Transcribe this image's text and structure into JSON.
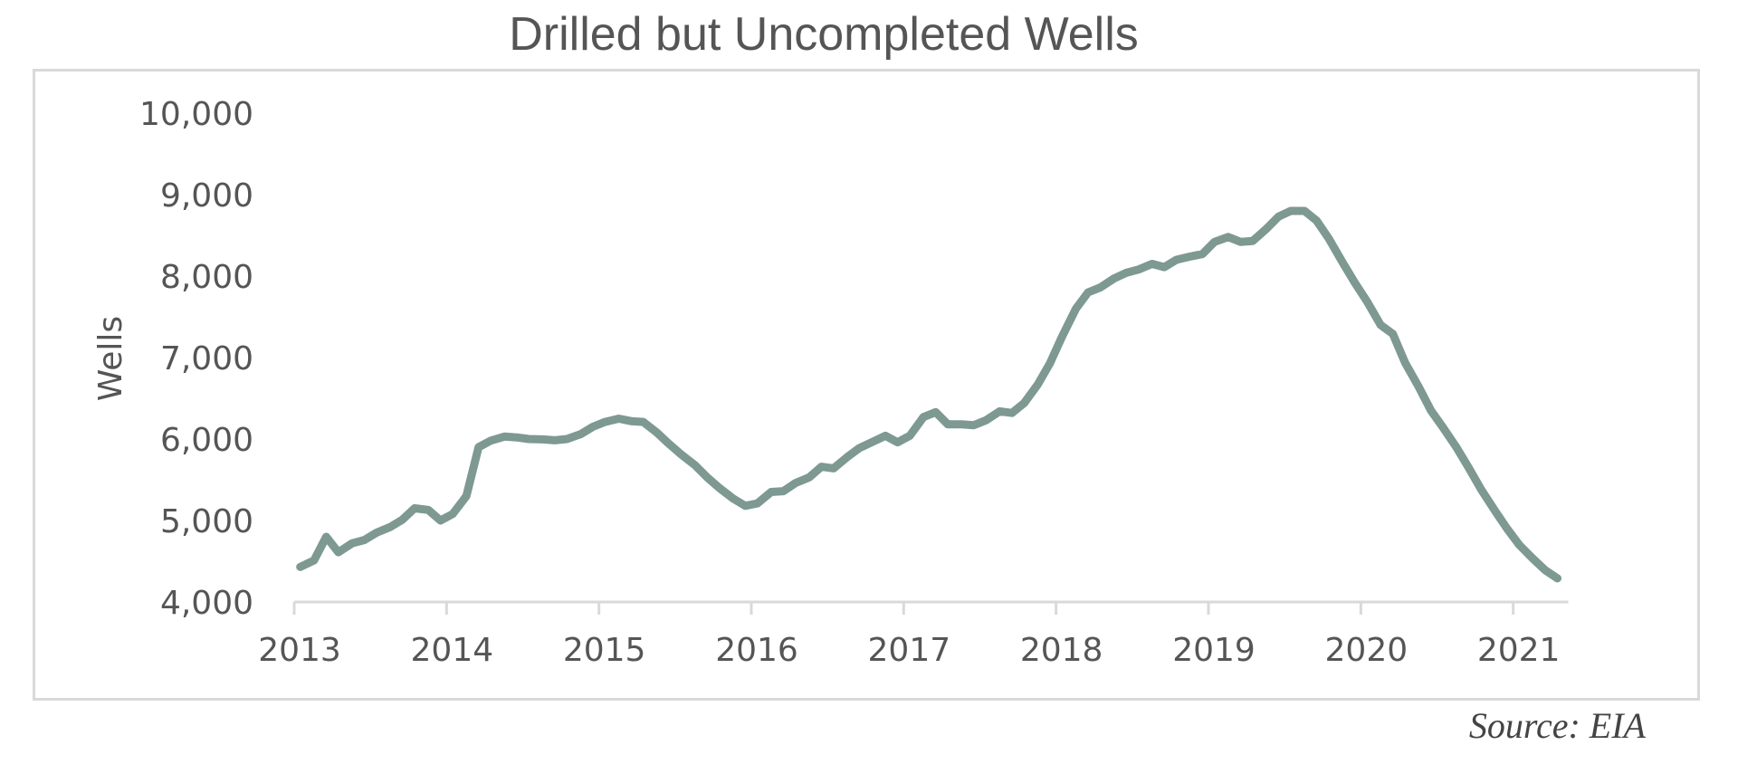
{
  "chart_data": {
    "type": "line",
    "title": "Drilled but Uncompleted Wells",
    "xlabel": "",
    "ylabel": "Wells",
    "ylim": [
      4000,
      10000
    ],
    "xlim": [
      2013,
      2021.33
    ],
    "yticks": [
      4000,
      5000,
      6000,
      7000,
      8000,
      9000,
      10000
    ],
    "ytick_labels": [
      "4,000",
      "5,000",
      "6,000",
      "7,000",
      "8,000",
      "9,000",
      "10,000"
    ],
    "xticks": [
      2013,
      2014,
      2015,
      2016,
      2017,
      2018,
      2019,
      2020,
      2021
    ],
    "xtick_labels": [
      "2013",
      "2014",
      "2015",
      "2016",
      "2017",
      "2018",
      "2019",
      "2020",
      "2021"
    ],
    "grid": false,
    "legend": "none",
    "line_color": "#7d9991",
    "series": [
      {
        "x": [
          2013.04,
          2013.13,
          2013.21,
          2013.29,
          2013.38,
          2013.46,
          2013.54,
          2013.63,
          2013.71,
          2013.79,
          2013.88,
          2013.96,
          2014.04,
          2014.13,
          2014.21,
          2014.29,
          2014.38,
          2014.46,
          2014.54,
          2014.63,
          2014.71,
          2014.79,
          2014.88,
          2014.96,
          2015.04,
          2015.13,
          2015.21,
          2015.29,
          2015.38,
          2015.46,
          2015.54,
          2015.63,
          2015.71,
          2015.79,
          2015.88,
          2015.96,
          2016.04,
          2016.13,
          2016.21,
          2016.29,
          2016.38,
          2016.46,
          2016.54,
          2016.63,
          2016.71,
          2016.79,
          2016.88,
          2016.96,
          2017.04,
          2017.13,
          2017.21,
          2017.29,
          2017.38,
          2017.46,
          2017.54,
          2017.63,
          2017.71,
          2017.79,
          2017.88,
          2017.96,
          2018.04,
          2018.13,
          2018.21,
          2018.29,
          2018.38,
          2018.46,
          2018.54,
          2018.63,
          2018.71,
          2018.79,
          2018.88,
          2018.96,
          2019.04,
          2019.13,
          2019.21,
          2019.29,
          2019.38,
          2019.46,
          2019.54,
          2019.63,
          2019.71,
          2019.79,
          2019.88,
          2019.96,
          2020.04,
          2020.13,
          2020.21,
          2020.29,
          2020.38,
          2020.46,
          2020.54,
          2020.63,
          2020.71,
          2020.79,
          2020.88,
          2020.96,
          2021.04,
          2021.13,
          2021.21,
          2021.29
        ],
        "y": [
          4430,
          4510,
          4800,
          4610,
          4720,
          4760,
          4850,
          4920,
          5010,
          5150,
          5130,
          5000,
          5080,
          5300,
          5900,
          5980,
          6030,
          6020,
          6000,
          5995,
          5985,
          6000,
          6060,
          6150,
          6210,
          6250,
          6220,
          6210,
          6080,
          5940,
          5810,
          5680,
          5530,
          5400,
          5270,
          5180,
          5210,
          5350,
          5360,
          5460,
          5530,
          5660,
          5640,
          5780,
          5890,
          5960,
          6040,
          5960,
          6040,
          6270,
          6330,
          6180,
          6180,
          6170,
          6230,
          6340,
          6320,
          6440,
          6670,
          6930,
          7260,
          7600,
          7800,
          7860,
          7970,
          8040,
          8080,
          8150,
          8110,
          8200,
          8240,
          8270,
          8420,
          8480,
          8420,
          8430,
          8580,
          8730,
          8800,
          8800,
          8680,
          8460,
          8170,
          7920,
          7690,
          7400,
          7290,
          6940,
          6640,
          6350,
          6140,
          5890,
          5640,
          5380,
          5120,
          4900,
          4700,
          4530,
          4390,
          4290
        ]
      }
    ]
  },
  "source_note": "Source: EIA"
}
